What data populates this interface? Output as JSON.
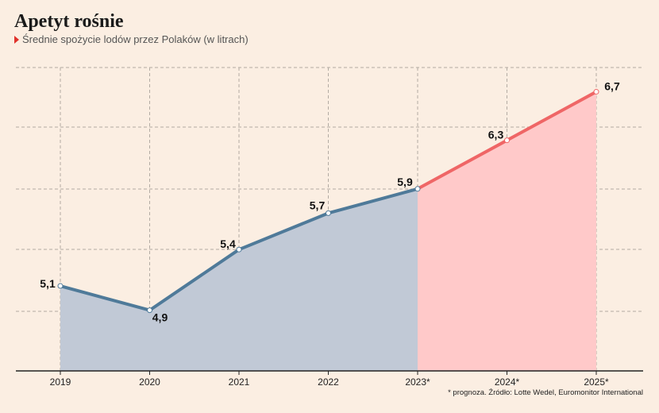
{
  "title": "Apetyt rośnie",
  "subtitle": "Średnie spożycie lodów przez Polaków (w litrach)",
  "footnote": "* prognoza. Źródło: Lotte Wedel, Euromonitor International",
  "colors": {
    "background": "#fbeee2",
    "actual_line": "#4f7a99",
    "actual_fill": "#c1c9d6",
    "forecast_line": "#ef6666",
    "forecast_fill": "#ffc9c9",
    "grid": "#b3aba3",
    "accent": "#e0312b"
  },
  "chart_data": {
    "type": "area",
    "categories": [
      "2019",
      "2020",
      "2021",
      "2022",
      "2023*",
      "2024*",
      "2025*"
    ],
    "values": [
      5.1,
      4.9,
      5.4,
      5.7,
      5.9,
      6.3,
      6.7
    ],
    "value_labels": [
      "5,1",
      "4,9",
      "5,4",
      "5,7",
      "5,9",
      "6,3",
      "6,7"
    ],
    "forecast_from_index": 4,
    "ylim": [
      4.4,
      6.9
    ],
    "grid": true
  }
}
